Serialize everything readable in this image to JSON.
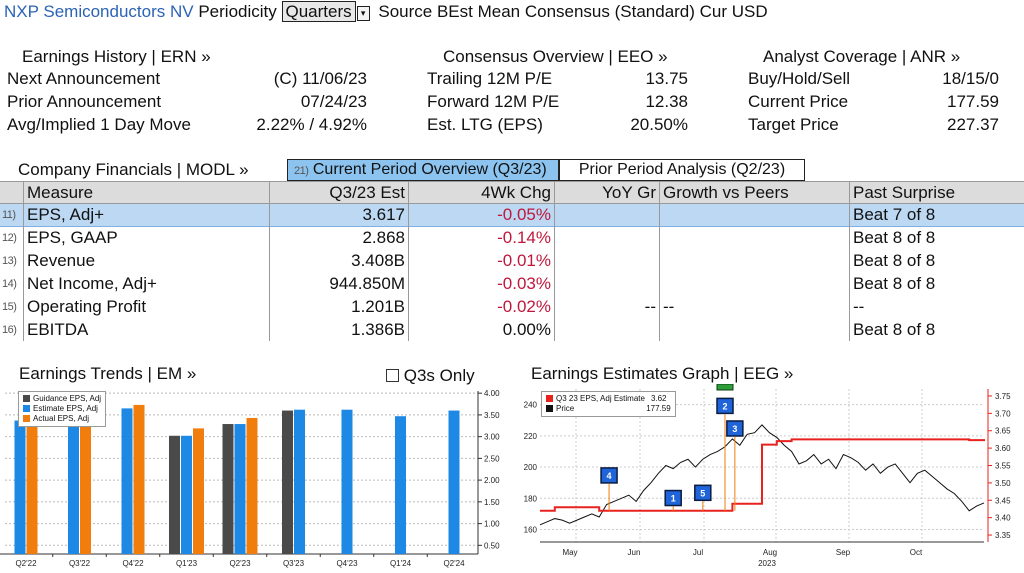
{
  "header": {
    "company": "NXP Semiconductors NV",
    "periodicity_label": "Periodicity",
    "periodicity_value": "Quarters",
    "source_text": "Source BEst Mean Consensus (Standard) Cur USD"
  },
  "summary": {
    "earnings": {
      "title": "Earnings History | ERN »",
      "rows": [
        {
          "label": "Next Announcement",
          "value": "(C)  11/06/23"
        },
        {
          "label": "Prior Announcement",
          "value": "07/24/23"
        },
        {
          "label": "Avg/Implied 1 Day Move",
          "value": "2.22% / 4.92%"
        }
      ]
    },
    "consensus": {
      "title": "Consensus Overview | EEO »",
      "rows": [
        {
          "label": "Trailing 12M P/E",
          "value": "13.75"
        },
        {
          "label": "Forward 12M P/E",
          "value": "12.38"
        },
        {
          "label": "Est. LTG (EPS)",
          "value": "20.50%"
        }
      ]
    },
    "analyst": {
      "title": "Analyst Coverage | ANR »",
      "rows": [
        {
          "label": "Buy/Hold/Sell",
          "value": "18/15/0"
        },
        {
          "label": "Current Price",
          "value": "177.59"
        },
        {
          "label": "Target Price",
          "value": "227.37"
        }
      ]
    }
  },
  "financials": {
    "title": "Company Financials | MODL »",
    "tabs": [
      {
        "num": "21)",
        "label": "Current Period Overview (Q3/23)"
      },
      {
        "num": "",
        "label": "Prior Period Analysis (Q2/23)"
      }
    ],
    "columns": [
      "Measure",
      "Q3/23 Est",
      "4Wk Chg",
      "YoY Gr",
      "Growth vs Peers",
      "Past Surprise"
    ],
    "rows": [
      {
        "num": "11)",
        "measure": "EPS, Adj+",
        "est": "3.617",
        "chg": "-0.05%",
        "yoy": "",
        "peers": "",
        "surprise": "Beat 7 of 8"
      },
      {
        "num": "12)",
        "measure": "EPS, GAAP",
        "est": "2.868",
        "chg": "-0.14%",
        "yoy": "",
        "peers": "",
        "surprise": "Beat 8 of 8"
      },
      {
        "num": "13)",
        "measure": "Revenue",
        "est": "3.408B",
        "chg": "-0.01%",
        "yoy": "",
        "peers": "",
        "surprise": "Beat 8 of 8"
      },
      {
        "num": "14)",
        "measure": "Net Income, Adj+",
        "est": "944.850M",
        "chg": "-0.03%",
        "yoy": "",
        "peers": "",
        "surprise": "Beat 8 of 8"
      },
      {
        "num": "15)",
        "measure": "Operating Profit",
        "est": "1.201B",
        "chg": "-0.02%",
        "yoy": "--",
        "peers": "--",
        "surprise": "--"
      },
      {
        "num": "16)",
        "measure": "EBITDA",
        "est": "1.386B",
        "chg": "0.00%",
        "yoy": "",
        "peers": "",
        "surprise": "Beat 8 of 8"
      }
    ]
  },
  "trends": {
    "title": "Earnings Trends | EM »",
    "checkbox_label": "Q3s Only",
    "legend": [
      "Guidance EPS, Adj",
      "Estimate EPS, Adj",
      "Actual EPS, Adj"
    ],
    "colors": {
      "guidance": "#4a4a4a",
      "estimate": "#1e88e5",
      "actual": "#f07d0c"
    }
  },
  "estimates_graph": {
    "title": "Earnings Estimates Graph | EEG »",
    "legend": [
      {
        "label": "Q3 23 EPS, Adj Estimate",
        "value": "3.62",
        "color": "#e8231f"
      },
      {
        "label": "Price",
        "value": "177.59",
        "color": "#111111"
      }
    ],
    "event_markers": [
      "4",
      "1",
      "5",
      "2",
      "3"
    ]
  },
  "chart_data": [
    {
      "type": "bar",
      "categories": [
        "Q2'22",
        "Q3'22",
        "Q4'22",
        "Q1'23",
        "Q2'23",
        "Q3'23",
        "Q4'23",
        "Q1'24",
        "Q2'24"
      ],
      "series": [
        {
          "name": "Guidance EPS, Adj",
          "values": [
            null,
            null,
            null,
            3.02,
            3.29,
            3.6,
            null,
            null,
            null
          ]
        },
        {
          "name": "Estimate EPS, Adj",
          "values": [
            3.37,
            3.55,
            3.65,
            3.02,
            3.29,
            3.62,
            3.62,
            3.47,
            3.6
          ]
        },
        {
          "name": "Actual EPS, Adj",
          "values": [
            3.33,
            3.65,
            3.73,
            3.19,
            3.43,
            null,
            null,
            null,
            null
          ]
        }
      ],
      "y_ticks": [
        "0.50",
        "1.00",
        "1.50",
        "2.00",
        "2.50",
        "3.00",
        "3.50",
        "4.00"
      ],
      "ylim": [
        0.3,
        4.05
      ]
    },
    {
      "type": "line",
      "x_labels": [
        "May",
        "Jun",
        "Jul",
        "Aug",
        "Sep",
        "Oct"
      ],
      "x_year": "2023",
      "left_ticks": [
        "160",
        "180",
        "200",
        "220",
        "240"
      ],
      "right_ticks": [
        "3.35",
        "3.40",
        "3.45",
        "3.50",
        "3.55",
        "3.60",
        "3.65",
        "3.70",
        "3.75"
      ],
      "series": [
        {
          "name": "Price",
          "axis": "left",
          "x": [
            0,
            3,
            6,
            9,
            12,
            15,
            18,
            21,
            24,
            27,
            30,
            33,
            36,
            39,
            42,
            45,
            48,
            51,
            54,
            57,
            60,
            63,
            66,
            69,
            72,
            75,
            78,
            81,
            84,
            87,
            90,
            93,
            96,
            99,
            102,
            105,
            108,
            111,
            114,
            117,
            120,
            123,
            126,
            129,
            132,
            135,
            138,
            141,
            144,
            147,
            150,
            153,
            156,
            159,
            162,
            165,
            168,
            171,
            174,
            177,
            180
          ],
          "values": [
            163,
            165,
            167,
            166,
            164,
            166,
            168,
            170,
            168,
            176,
            178,
            180,
            182,
            178,
            185,
            190,
            196,
            201,
            199,
            203,
            205,
            200,
            205,
            208,
            210,
            213,
            218,
            214,
            221,
            222,
            227,
            222,
            219,
            214,
            210,
            202,
            204,
            208,
            202,
            205,
            199,
            208,
            206,
            203,
            198,
            202,
            196,
            200,
            202,
            196,
            190,
            196,
            198,
            194,
            190,
            186,
            183,
            178,
            172,
            175,
            177
          ]
        },
        {
          "name": "Q3 23 EPS, Adj Estimate",
          "axis": "right",
          "x": [
            0,
            6,
            12,
            18,
            24,
            30,
            36,
            42,
            48,
            54,
            60,
            66,
            72,
            78,
            84,
            90,
            96,
            102,
            108,
            114,
            120,
            126,
            132,
            138,
            144,
            150,
            156,
            162,
            168,
            174,
            180
          ],
          "values": [
            3.42,
            3.43,
            3.43,
            3.43,
            3.42,
            3.42,
            3.42,
            3.42,
            3.42,
            3.42,
            3.42,
            3.42,
            3.42,
            3.44,
            3.44,
            3.61,
            3.62,
            3.625,
            3.625,
            3.625,
            3.625,
            3.625,
            3.625,
            3.625,
            3.625,
            3.625,
            3.625,
            3.625,
            3.625,
            3.623,
            3.62
          ]
        }
      ]
    }
  ]
}
